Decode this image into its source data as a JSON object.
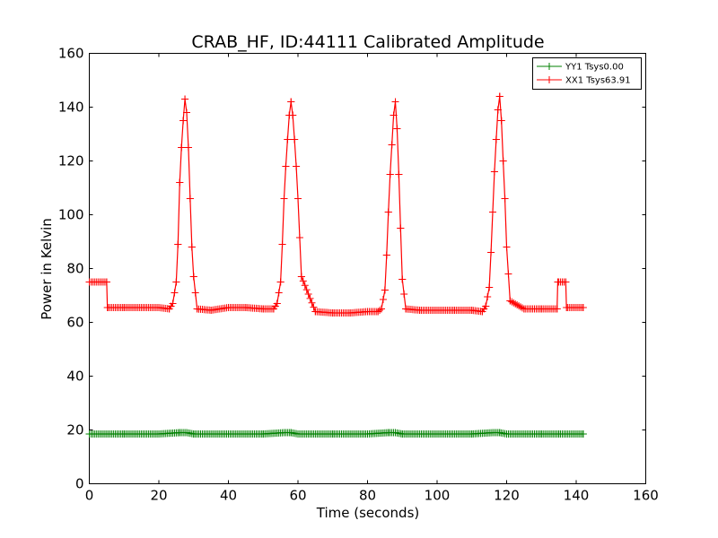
{
  "chart_data": {
    "type": "line",
    "title": "CRAB_HF, ID:44111 Calibrated Amplitude",
    "xlabel": "Time (seconds)",
    "ylabel": "Power in Kelvin",
    "xlim": [
      0,
      160
    ],
    "ylim": [
      0,
      160
    ],
    "xticks": [
      0,
      20,
      40,
      60,
      80,
      100,
      120,
      140,
      160
    ],
    "yticks": [
      0,
      20,
      40,
      60,
      80,
      100,
      120,
      140,
      160
    ],
    "grid": false,
    "legend_position": "top-right",
    "series": [
      {
        "name": "YY1 Tsys0.00",
        "color": "#008000",
        "marker": "+",
        "x": [
          0,
          10,
          20,
          26,
          28,
          30,
          40,
          50,
          56,
          58,
          60,
          70,
          80,
          86,
          88,
          90,
          100,
          110,
          116,
          118,
          120,
          130,
          135,
          142
        ],
        "y": [
          18.5,
          18.5,
          18.5,
          19.0,
          19.0,
          18.5,
          18.5,
          18.5,
          19.0,
          19.0,
          18.5,
          18.5,
          18.5,
          19.0,
          19.0,
          18.5,
          18.5,
          18.5,
          19.0,
          19.0,
          18.5,
          18.5,
          18.5,
          18.5
        ]
      },
      {
        "name": "XX1 Tsys63.91",
        "color": "#ff0000",
        "marker": "+",
        "x": [
          0,
          5,
          5.2,
          10,
          20,
          23,
          24,
          25,
          25.5,
          26,
          26.5,
          27,
          27.5,
          28,
          28.5,
          29,
          29.5,
          30,
          31,
          35,
          40,
          45,
          50,
          53,
          54,
          55,
          55.5,
          56,
          56.5,
          57,
          57.5,
          58,
          58.5,
          59,
          59.5,
          60,
          61,
          65,
          70,
          75,
          80,
          83,
          84,
          85,
          85.5,
          86,
          86.5,
          87,
          87.5,
          88,
          88.5,
          89,
          89.5,
          90,
          91,
          95,
          100,
          105,
          110,
          113,
          114,
          115,
          115.5,
          116,
          116.5,
          117,
          117.5,
          118,
          118.5,
          119,
          119.5,
          120,
          121,
          125,
          130,
          134.5,
          134.7,
          137,
          137.2,
          142
        ],
        "y": [
          75,
          75,
          65.5,
          65.5,
          65.5,
          65,
          67,
          75,
          89,
          112,
          125,
          135,
          143,
          138,
          125,
          106,
          88,
          77,
          65,
          64.5,
          65.5,
          65.5,
          65,
          65,
          67,
          75,
          89,
          106,
          118,
          128,
          137,
          142,
          137,
          128,
          118,
          106,
          77,
          64,
          63.5,
          63.5,
          64,
          64,
          65,
          72,
          85,
          101,
          115,
          126,
          137,
          142,
          132,
          115,
          95,
          76,
          65,
          64.5,
          64.5,
          64.5,
          64.5,
          64,
          66,
          73,
          86,
          101,
          116,
          128,
          139,
          144,
          135,
          120,
          106,
          88,
          68,
          65,
          65,
          65,
          75,
          75,
          65.5,
          65.5
        ]
      }
    ]
  }
}
